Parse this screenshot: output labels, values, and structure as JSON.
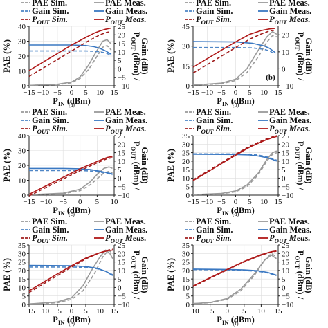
{
  "colors": {
    "pae_sim": "#9a9a9a",
    "pae_meas": "#9a9a9a",
    "gain_sim": "#4f86c6",
    "gain_meas": "#3a78c2",
    "pout_sim": "#a01e1e",
    "pout_meas": "#b01818",
    "axis": "#222222"
  },
  "legend": {
    "pae_sim": "PAE Sim.",
    "pae_meas": "PAE Meas.",
    "gain_sim": "Gain Sim.",
    "gain_meas": "Gain Meas.",
    "pout_sim_prefix": "P",
    "pout_sim_sub": "OUT",
    "pout_sim_suffix": " Sim.",
    "pout_meas_prefix": "P",
    "pout_meas_sub": "OUT",
    "pout_meas_suffix": " Meas."
  },
  "chart_data": [
    {
      "type": "line",
      "caption": "(a)",
      "xlabel": "P_IN (dBm)",
      "ylabel_left": "PAE (%)",
      "ylabel_right": "P_OUT (dBm) / Gain (dB)",
      "xlim": [
        -15,
        15
      ],
      "ylim_left": [
        0,
        40
      ],
      "ylim_right": [
        -10,
        25
      ],
      "xticks": [
        -15,
        -10,
        -5,
        0,
        5,
        10,
        15
      ],
      "yticks_left": [
        0,
        10,
        20,
        30,
        40
      ],
      "yticks_right": [
        -10,
        -5,
        0,
        5,
        10,
        15,
        20,
        25
      ],
      "legend_position": "top",
      "series": [
        {
          "key": "pae_sim",
          "axis": "left",
          "dash": true,
          "x": [
            -15,
            -5,
            0,
            3,
            6,
            9,
            11,
            12.5,
            14
          ],
          "y": [
            0.3,
            0.8,
            2,
            5,
            11,
            20,
            26,
            27,
            24
          ]
        },
        {
          "key": "pae_meas",
          "axis": "left",
          "dash": false,
          "x": [
            -15,
            -5,
            0,
            3,
            6,
            9,
            11,
            12.5,
            14
          ],
          "y": [
            0.3,
            1,
            2.5,
            6,
            14,
            24,
            30,
            31,
            28
          ]
        },
        {
          "key": "gain_sim",
          "axis": "right",
          "dash": true,
          "x": [
            -15,
            0,
            5,
            8,
            10,
            12,
            14
          ],
          "y": [
            10.5,
            10.5,
            10.5,
            10.3,
            10,
            9.3,
            8
          ]
        },
        {
          "key": "gain_meas",
          "axis": "right",
          "dash": false,
          "x": [
            -15,
            0,
            5,
            8,
            10,
            12,
            14
          ],
          "y": [
            14,
            14,
            13.7,
            13,
            12,
            10.5,
            8.5
          ]
        },
        {
          "key": "pout_sim",
          "axis": "right",
          "dash": true,
          "x": [
            -15,
            -10,
            -5,
            0,
            5,
            8,
            10,
            12,
            14
          ],
          "y": [
            -4.5,
            0.5,
            5.5,
            10.5,
            15.5,
            18.3,
            20,
            21.3,
            22
          ]
        },
        {
          "key": "pout_meas",
          "axis": "right",
          "dash": false,
          "x": [
            -15,
            -10,
            -5,
            0,
            5,
            8,
            10,
            12,
            14
          ],
          "y": [
            -1,
            4,
            9,
            14,
            18.5,
            21,
            22.3,
            23.3,
            24
          ]
        }
      ]
    },
    {
      "type": "line",
      "caption": "(b)",
      "panel_label": "(b)",
      "xlabel": "P_IN (dBm)",
      "ylabel_left": "PAE (%)",
      "ylabel_right": "P_OUT (dBm) / Gain (dB)",
      "xlim": [
        -15,
        15
      ],
      "ylim_left": [
        0,
        45
      ],
      "ylim_right": [
        -10,
        25
      ],
      "xticks": [
        -15,
        -10,
        -5,
        0,
        5,
        10,
        15
      ],
      "yticks_left": [
        0,
        15,
        30,
        45
      ],
      "yticks_right": [
        -10,
        0,
        10,
        20
      ],
      "legend_position": "top",
      "series": [
        {
          "key": "pae_sim",
          "axis": "left",
          "dash": true,
          "x": [
            -15,
            -5,
            0,
            4,
            8,
            11,
            13,
            14.5
          ],
          "y": [
            0.5,
            1.5,
            4,
            10,
            22,
            33,
            38,
            37
          ]
        },
        {
          "key": "pae_meas",
          "axis": "left",
          "dash": false,
          "x": [
            -15,
            -5,
            0,
            4,
            8,
            11,
            13,
            14.5
          ],
          "y": [
            0.5,
            2,
            5,
            13,
            27,
            37,
            41,
            39
          ]
        },
        {
          "key": "gain_sim",
          "axis": "right",
          "dash": true,
          "x": [
            -15,
            0,
            6,
            10,
            12,
            14
          ],
          "y": [
            12.5,
            12.5,
            12.3,
            11.5,
            10.5,
            8.5
          ]
        },
        {
          "key": "gain_meas",
          "axis": "right",
          "dash": false,
          "x": [
            -15,
            0,
            6,
            10,
            12,
            14
          ],
          "y": [
            16,
            15.8,
            15,
            13.5,
            12,
            9.5
          ]
        },
        {
          "key": "pout_sim",
          "axis": "right",
          "dash": true,
          "x": [
            -15,
            -10,
            -5,
            0,
            5,
            9,
            12,
            14
          ],
          "y": [
            -2.5,
            2.5,
            7.5,
            12.5,
            17.5,
            20.5,
            22.3,
            22.8
          ]
        },
        {
          "key": "pout_meas",
          "axis": "right",
          "dash": false,
          "x": [
            -15,
            -10,
            -5,
            0,
            5,
            9,
            12,
            14
          ],
          "y": [
            1,
            6,
            11,
            15.8,
            20.3,
            22.5,
            23.5,
            23.8
          ]
        }
      ]
    },
    {
      "type": "line",
      "caption": "(c)",
      "xlabel": "P_IN (dBm)",
      "ylabel_left": "PAE (%)",
      "ylabel_right": "P_OUT (dBm) / Gain (dB)",
      "xlim": [
        -15,
        10
      ],
      "ylim_left": [
        0,
        40
      ],
      "ylim_right": [
        -10,
        25
      ],
      "xticks": [
        -15,
        -10,
        -5,
        0,
        5,
        10
      ],
      "yticks_left": [
        0,
        10,
        20,
        30,
        40
      ],
      "yticks_right": [
        -10,
        -5,
        0,
        5,
        10,
        15,
        20,
        25
      ],
      "legend_position": "top",
      "series": [
        {
          "key": "pae_sim",
          "axis": "left",
          "dash": true,
          "x": [
            -15,
            -5,
            0,
            3,
            5,
            7,
            8.5,
            9.5
          ],
          "y": [
            0.3,
            1,
            3,
            7,
            11,
            15,
            16,
            15
          ]
        },
        {
          "key": "pae_meas",
          "axis": "left",
          "dash": false,
          "x": [
            -15,
            -5,
            0,
            3,
            5,
            7,
            8.5,
            9.5
          ],
          "y": [
            0.3,
            1.3,
            4,
            9,
            14,
            18,
            19,
            18
          ]
        },
        {
          "key": "gain_sim",
          "axis": "right",
          "dash": true,
          "x": [
            -15,
            -5,
            0,
            3,
            6,
            8,
            9.5
          ],
          "y": [
            4.5,
            4.5,
            4.5,
            4.2,
            3.5,
            2.8,
            2
          ]
        },
        {
          "key": "gain_meas",
          "axis": "right",
          "dash": false,
          "x": [
            -15,
            -5,
            0,
            3,
            6,
            8,
            9.5
          ],
          "y": [
            5.7,
            5.7,
            5.5,
            5,
            4,
            3.2,
            2.5
          ]
        },
        {
          "key": "pout_sim",
          "axis": "right",
          "dash": true,
          "x": [
            -15,
            -10,
            -5,
            0,
            5,
            8,
            9.5
          ],
          "y": [
            -10.5,
            -5.5,
            -0.5,
            4.5,
            9,
            11.5,
            12
          ]
        },
        {
          "key": "pout_meas",
          "axis": "right",
          "dash": false,
          "x": [
            -15,
            -10,
            -5,
            0,
            5,
            8,
            9.5
          ],
          "y": [
            -9.5,
            -4.5,
            0.5,
            5.5,
            9.8,
            12.2,
            12.8
          ]
        }
      ]
    },
    {
      "type": "line",
      "caption": "(d)",
      "xlabel": "P_IN (dBm)",
      "ylabel_left": "PAE (%)",
      "ylabel_right": "P_OUT (dBm) / Gain (dB)",
      "xlim": [
        -15,
        15
      ],
      "ylim_left": [
        0,
        35
      ],
      "ylim_right": [
        -10,
        25
      ],
      "xticks": [
        -15,
        -10,
        -5,
        0,
        5,
        10,
        15
      ],
      "yticks_left": [
        0,
        5,
        10,
        15,
        20,
        25,
        30,
        35
      ],
      "yticks_right": [
        -10,
        -5,
        0,
        5,
        10,
        15,
        20,
        25
      ],
      "legend_position": "top",
      "series": [
        {
          "key": "pae_sim",
          "axis": "left",
          "dash": true,
          "x": [
            -15,
            -5,
            0,
            4,
            8,
            11,
            13,
            14.5
          ],
          "y": [
            0.3,
            0.8,
            2,
            5,
            12,
            20,
            24,
            25
          ]
        },
        {
          "key": "pae_meas",
          "axis": "left",
          "dash": false,
          "x": [
            -15,
            -5,
            0,
            4,
            8,
            11,
            13,
            14.5
          ],
          "y": [
            0.3,
            1,
            2.5,
            6,
            13,
            21,
            25,
            26
          ]
        },
        {
          "key": "gain_sim",
          "axis": "right",
          "dash": true,
          "x": [
            -15,
            0,
            5,
            8,
            11,
            13,
            14.5
          ],
          "y": [
            14.3,
            14.2,
            14,
            13.6,
            12.5,
            11.5,
            10.5
          ]
        },
        {
          "key": "gain_meas",
          "axis": "right",
          "dash": false,
          "x": [
            -15,
            0,
            5,
            8,
            11,
            13,
            14.5
          ],
          "y": [
            14,
            13.9,
            13.6,
            13,
            12,
            11,
            10
          ]
        },
        {
          "key": "pout_sim",
          "axis": "right",
          "dash": true,
          "x": [
            -15,
            -10,
            -5,
            0,
            5,
            10,
            13,
            14.5
          ],
          "y": [
            -1,
            4,
            9,
            14,
            18.8,
            22.5,
            24.3,
            25
          ]
        },
        {
          "key": "pout_meas",
          "axis": "right",
          "dash": false,
          "x": [
            -15,
            -10,
            -5,
            0,
            5,
            10,
            13,
            14.5
          ],
          "y": [
            -1.5,
            3.5,
            8.5,
            13.5,
            18.3,
            22,
            23.8,
            24.5
          ]
        }
      ]
    },
    {
      "type": "line",
      "caption": "(e)",
      "xlabel": "P_IN (dBm)",
      "ylabel_left": "PAE (%)",
      "ylabel_right": "P_OUT (dBm) / Gain (dB)",
      "xlim": [
        -15,
        15
      ],
      "ylim_left": [
        0,
        35
      ],
      "ylim_right": [
        -10,
        25
      ],
      "xticks": [
        -15,
        -10,
        -5,
        0,
        5,
        10,
        15
      ],
      "yticks_left": [
        0,
        5,
        10,
        15,
        20,
        25,
        30,
        35
      ],
      "yticks_right": [
        -10,
        -5,
        0,
        5,
        10,
        15,
        20,
        25
      ],
      "legend_position": "top",
      "series": [
        {
          "key": "pae_sim",
          "axis": "left",
          "dash": true,
          "x": [
            -15,
            -5,
            0,
            4,
            8,
            11,
            13,
            14.5
          ],
          "y": [
            0.3,
            1,
            3,
            8,
            18,
            28,
            32,
            30
          ]
        },
        {
          "key": "pae_meas",
          "axis": "left",
          "dash": false,
          "x": [
            -15,
            -5,
            0,
            4,
            7,
            10,
            12,
            13.5,
            14.5
          ],
          "y": [
            0.3,
            1.5,
            4,
            11,
            20,
            28,
            32,
            30,
            27
          ]
        },
        {
          "key": "gain_sim",
          "axis": "right",
          "dash": true,
          "x": [
            -15,
            0,
            5,
            9,
            12,
            14.5
          ],
          "y": [
            12,
            12,
            11.8,
            11,
            9.5,
            7.5
          ]
        },
        {
          "key": "gain_meas",
          "axis": "right",
          "dash": false,
          "x": [
            -15,
            0,
            5,
            9,
            12,
            14.5
          ],
          "y": [
            13,
            12.8,
            12.3,
            11.3,
            9.5,
            7
          ]
        },
        {
          "key": "pout_sim",
          "axis": "right",
          "dash": true,
          "x": [
            -15,
            -10,
            -5,
            0,
            5,
            10,
            13,
            14.5
          ],
          "y": [
            -3,
            2,
            7,
            12,
            16.8,
            20.5,
            22,
            22.5
          ]
        },
        {
          "key": "pout_meas",
          "axis": "right",
          "dash": false,
          "x": [
            -15,
            -10,
            -5,
            0,
            5,
            10,
            13,
            14.5
          ],
          "y": [
            -2,
            3,
            8,
            12.8,
            17.3,
            20.5,
            21.7,
            22
          ]
        }
      ]
    },
    {
      "type": "line",
      "caption": "(f)",
      "xlabel": "P_IN (dBm)",
      "ylabel_left": "PAE (%)",
      "ylabel_right": "P_OUT (dBm) / Gain (dB)",
      "xlim": [
        -10,
        15
      ],
      "ylim_left": [
        0,
        35
      ],
      "ylim_right": [
        -10,
        25
      ],
      "xticks": [
        -10,
        -5,
        0,
        5,
        10,
        15
      ],
      "yticks_left": [
        0,
        5,
        10,
        15,
        20,
        25,
        30,
        35
      ],
      "yticks_right": [
        -10,
        -5,
        0,
        5,
        10,
        15,
        20,
        25
      ],
      "legend_position": "top",
      "series": [
        {
          "key": "pae_sim",
          "axis": "left",
          "dash": true,
          "x": [
            -10,
            -5,
            0,
            4,
            8,
            11,
            13,
            14.5
          ],
          "y": [
            0.5,
            1,
            3,
            8,
            17,
            26,
            30,
            28
          ]
        },
        {
          "key": "pae_meas",
          "axis": "left",
          "dash": false,
          "x": [
            -10,
            -5,
            0,
            4,
            8,
            11,
            13,
            14.5
          ],
          "y": [
            0.5,
            1.2,
            3.5,
            9,
            18,
            26,
            29,
            27
          ]
        },
        {
          "key": "gain_sim",
          "axis": "right",
          "dash": true,
          "x": [
            -10,
            0,
            5,
            9,
            12,
            14.5
          ],
          "y": [
            10.5,
            10.3,
            10,
            9.5,
            8.5,
            7
          ]
        },
        {
          "key": "gain_meas",
          "axis": "right",
          "dash": false,
          "x": [
            -10,
            0,
            5,
            9,
            12,
            14.5
          ],
          "y": [
            10.8,
            10.6,
            10.3,
            9.8,
            8.8,
            7.2
          ]
        },
        {
          "key": "pout_sim",
          "axis": "right",
          "dash": true,
          "x": [
            -10,
            -5,
            0,
            5,
            10,
            13,
            14.5
          ],
          "y": [
            0.5,
            5.5,
            10.3,
            15,
            19,
            20.8,
            21.3
          ]
        },
        {
          "key": "pout_meas",
          "axis": "right",
          "dash": false,
          "x": [
            -10,
            -5,
            0,
            5,
            10,
            13,
            14.5
          ],
          "y": [
            0.8,
            5.8,
            10.6,
            15.3,
            19.3,
            21,
            21.5
          ]
        }
      ]
    }
  ]
}
